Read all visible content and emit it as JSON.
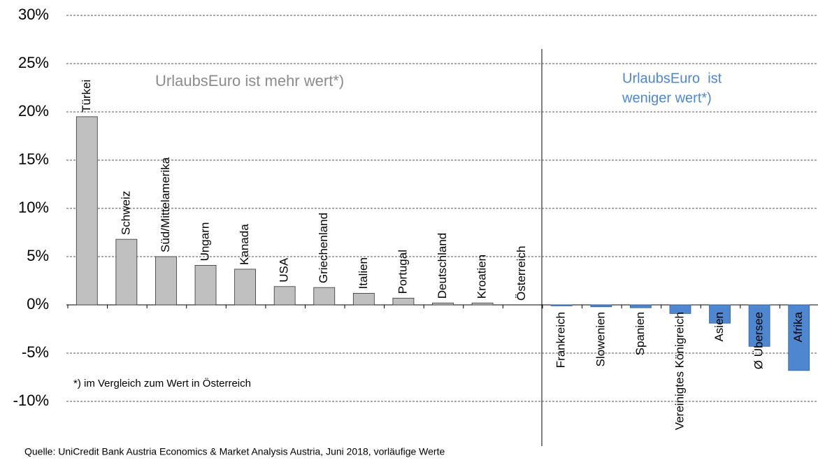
{
  "chart_data": {
    "type": "bar",
    "categories": [
      "Türkei",
      "Schweiz",
      "Süd/Mittelamerika",
      "Ungarn",
      "Kanada",
      "USA",
      "Griechenland",
      "Italien",
      "Portugal",
      "Deutschland",
      "Kroatien",
      "Österreich",
      "Frankreich",
      "Slowenien",
      "Spanien",
      "Vereinigtes Königreich",
      "Asien",
      "Ø Übersee",
      "Afrika"
    ],
    "values": [
      19.5,
      6.8,
      5.0,
      4.1,
      3.7,
      1.9,
      1.8,
      1.2,
      0.7,
      0.2,
      0.2,
      0,
      -0.1,
      -0.2,
      -0.3,
      -0.9,
      -1.9,
      -4.3,
      -6.8
    ],
    "colors": {
      "positive": "#c0c0c0",
      "negative": "#4f86d0"
    },
    "ylim": [
      -10,
      30
    ],
    "yticks": [
      {
        "value": -10,
        "label": "-10%"
      },
      {
        "value": -5,
        "label": "-5%"
      },
      {
        "value": 0,
        "label": "0%"
      },
      {
        "value": 5,
        "label": "5%"
      },
      {
        "value": 10,
        "label": "10%"
      },
      {
        "value": 15,
        "label": "15%"
      },
      {
        "value": 20,
        "label": "20%"
      },
      {
        "value": 25,
        "label": "25%"
      },
      {
        "value": 30,
        "label": "30%"
      }
    ],
    "grid": true,
    "annotations": [
      "UrlaubsEuro ist mehr wert*)",
      "UrlaubsEuro  ist",
      "weniger wert*)",
      "*) im Vergleich zum Wert in Österreich"
    ],
    "source": "Quelle: UniCredit Bank Austria Economics & Market Analysis Austria, Juni 2018, vorläufige Werte"
  }
}
